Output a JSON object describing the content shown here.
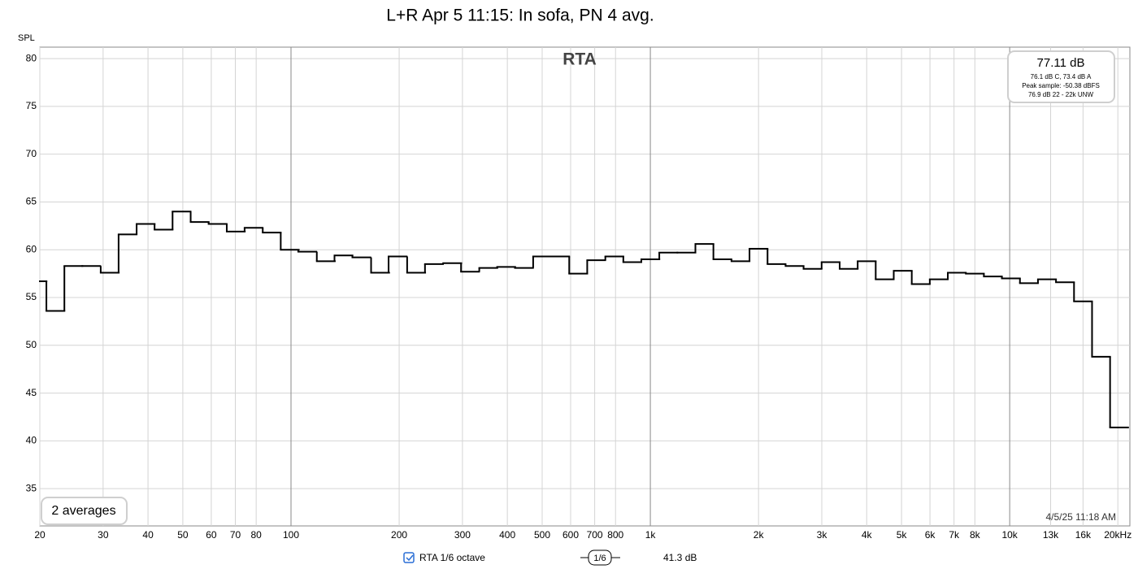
{
  "chart_data": {
    "type": "step",
    "title": "L+R Apr 5 11:15: In sofa, PN 4 avg.",
    "y_label": "SPL",
    "plot_label": "RTA",
    "x_scale": "log",
    "grid": true,
    "color": "#000000",
    "x": [
      19.7,
      22.1,
      24.8,
      27.8,
      31.3,
      35.1,
      39.4,
      44.2,
      49.6,
      55.7,
      62.5,
      70.2,
      78.7,
      88.4,
      99.2,
      111,
      125,
      140,
      157,
      177,
      198,
      223,
      250,
      281,
      315,
      354,
      397,
      445,
      500,
      561,
      630,
      707,
      794,
      891,
      1000,
      1122,
      1260,
      1414,
      1587,
      1782,
      2000,
      2245,
      2520,
      2828,
      3175,
      3564,
      4000,
      4490,
      5040,
      5657,
      6350,
      7127,
      8000,
      8980,
      10079,
      11314,
      12699,
      14254,
      16000,
      17959,
      20159
    ],
    "values": [
      56.7,
      53.6,
      58.3,
      58.3,
      57.6,
      61.6,
      62.7,
      62.1,
      64.0,
      62.9,
      62.7,
      61.9,
      62.3,
      61.8,
      60.0,
      59.8,
      58.8,
      59.4,
      59.2,
      57.6,
      59.3,
      57.6,
      58.5,
      58.6,
      57.7,
      58.1,
      58.2,
      58.1,
      59.3,
      59.3,
      57.5,
      58.9,
      59.3,
      58.7,
      59.0,
      59.7,
      59.7,
      60.6,
      59.0,
      58.8,
      60.1,
      58.5,
      58.3,
      58.0,
      58.7,
      58.0,
      58.8,
      56.9,
      57.8,
      56.4,
      56.9,
      57.6,
      57.5,
      57.2,
      57.0,
      56.5,
      56.9,
      56.6,
      54.6,
      48.8,
      41.4
    ],
    "xlim": [
      20,
      21600
    ],
    "ylim": [
      31.1,
      81.2
    ],
    "xticks": [
      20,
      30,
      40,
      50,
      60,
      70,
      80,
      100,
      200,
      300,
      400,
      500,
      600,
      700,
      800,
      {
        "value": 1000,
        "label": "1k"
      },
      {
        "value": 2000,
        "label": "2k"
      },
      {
        "value": 3000,
        "label": "3k"
      },
      {
        "value": 4000,
        "label": "4k"
      },
      {
        "value": 5000,
        "label": "5k"
      },
      {
        "value": 6000,
        "label": "6k"
      },
      {
        "value": 7000,
        "label": "7k"
      },
      {
        "value": 8000,
        "label": "8k"
      },
      {
        "value": 10000,
        "label": "10k"
      },
      {
        "value": 13000,
        "label": "13k"
      },
      {
        "value": 16000,
        "label": "16k"
      },
      {
        "value": 20000,
        "label": "20kHz"
      }
    ],
    "yticks": [
      35,
      40,
      45,
      50,
      55,
      60,
      65,
      70,
      75,
      80
    ],
    "info_box": {
      "level": "77.11 dB",
      "weighted": "76.1 dB C, 73.4 dB A",
      "peak": "Peak sample: -50.38 dBFS",
      "unweighted": "76.9 dB 22 - 22k UNW"
    },
    "averages": "2 averages",
    "timestamp": "4/5/25 11:18 AM"
  },
  "status_bar": {
    "trace": "RTA 1/6 octave",
    "smoothing": "1/6",
    "level": "41.3 dB"
  }
}
